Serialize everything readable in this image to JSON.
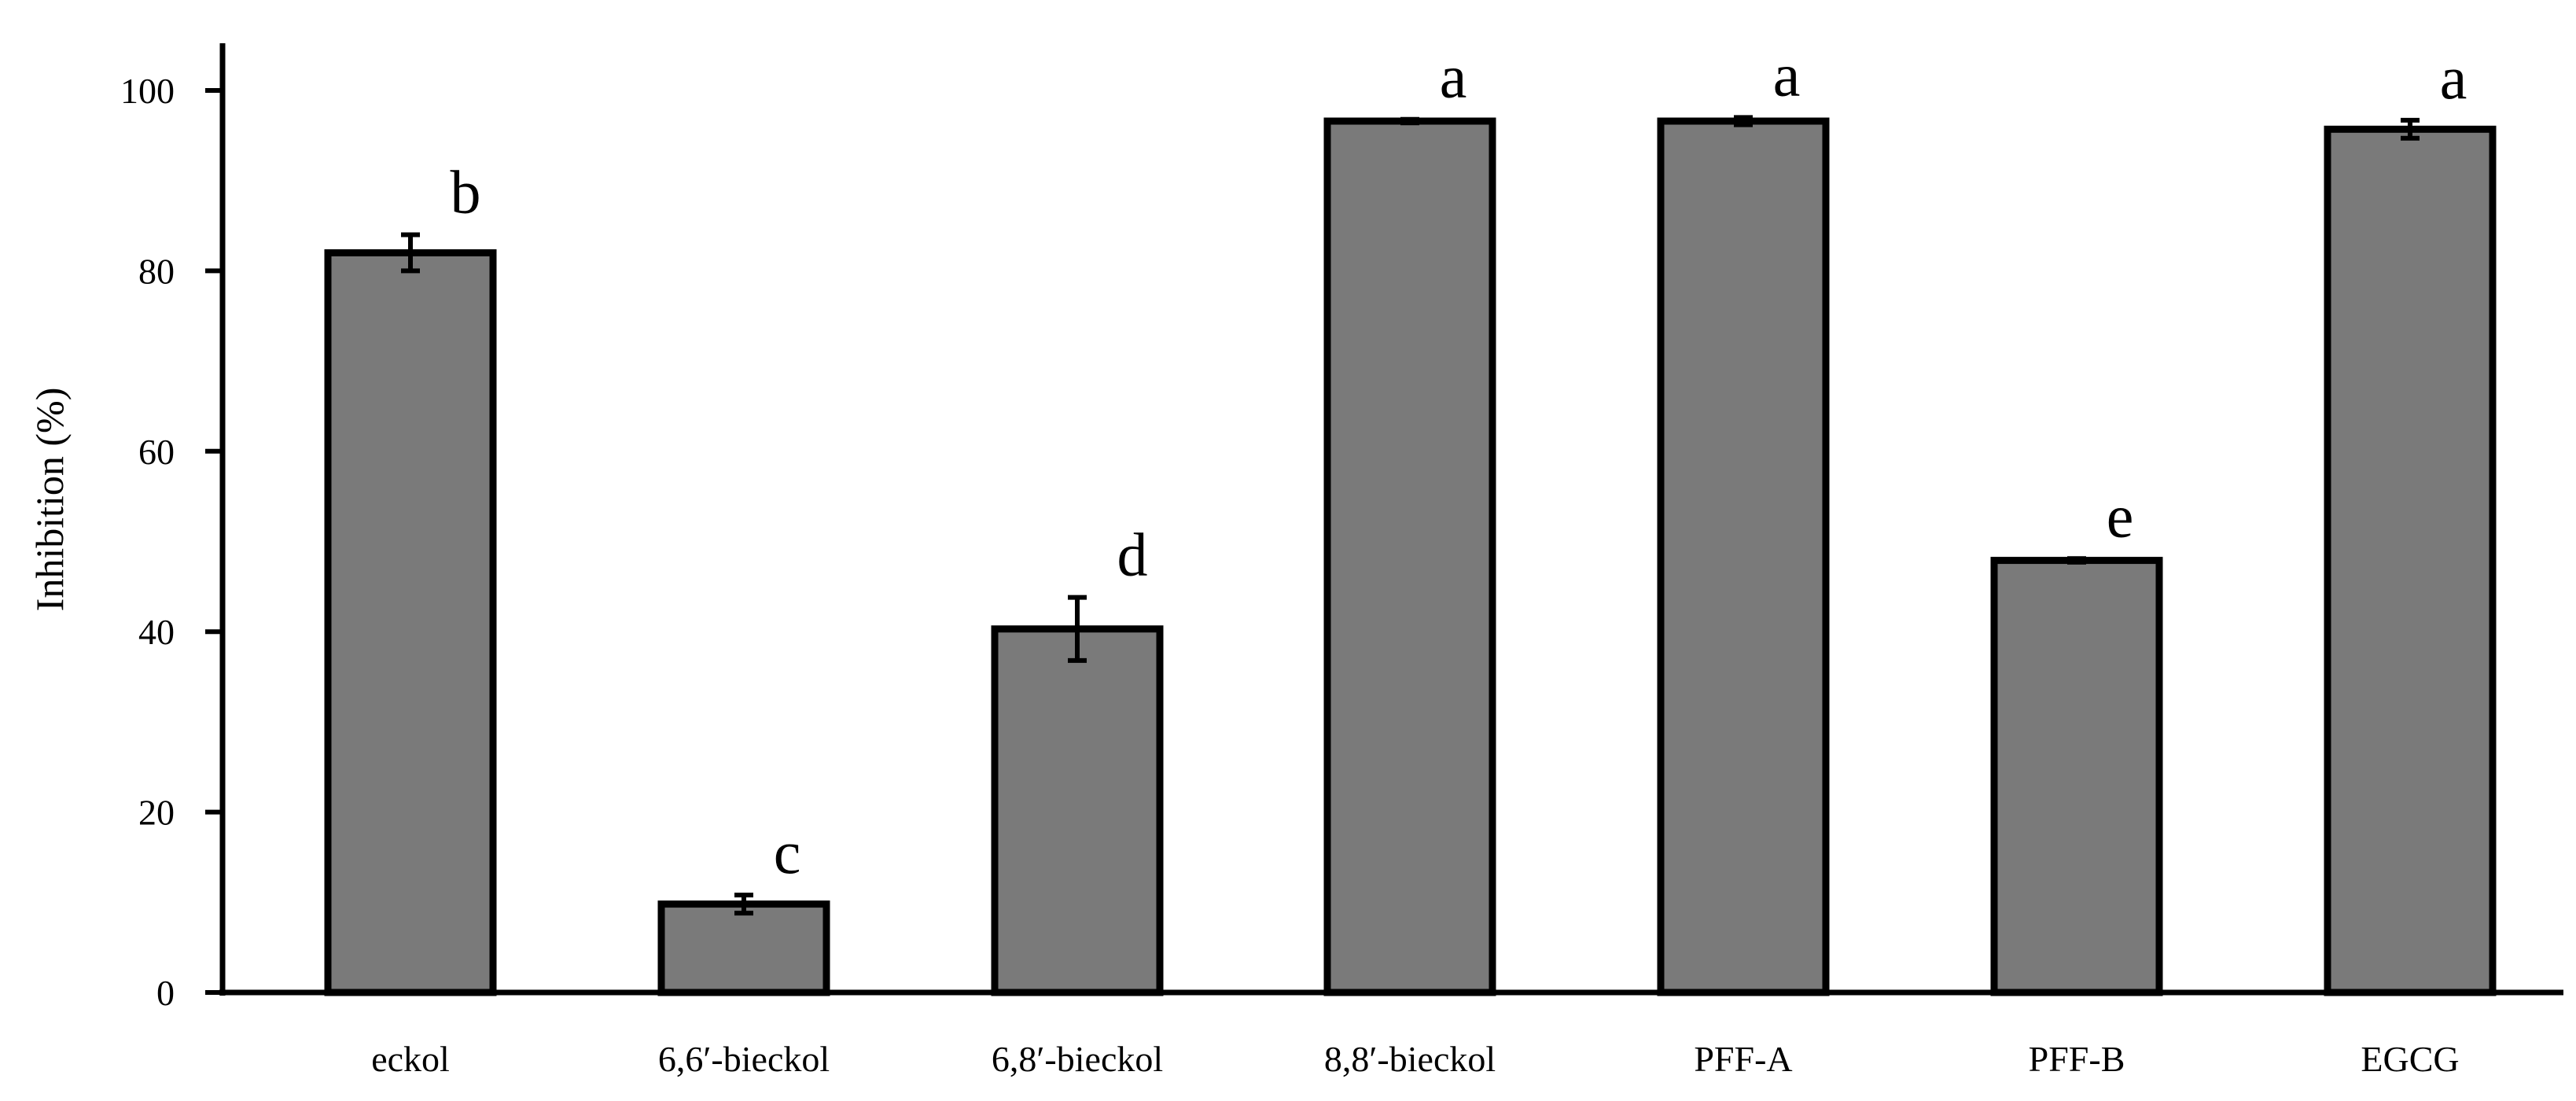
{
  "chart_data": {
    "type": "bar",
    "title": "",
    "xlabel": "",
    "ylabel": "Inhibition (%)",
    "ylim": [
      0,
      100
    ],
    "yticks": [
      "0",
      "20",
      "40",
      "60",
      "80",
      "100"
    ],
    "grid": false,
    "legend": "none",
    "categories": [
      "eckol",
      "6,6′-bieckol",
      "6,8′-bieckol",
      "8,8′-bieckol",
      "PFF-A",
      "PFF-B",
      "EGCG"
    ],
    "series": [
      {
        "values": [
          82.0,
          9.8,
          40.3,
          96.6,
          96.6,
          47.9,
          95.7
        ],
        "errors": [
          2.0,
          1.0,
          3.5,
          0.2,
          0.4,
          0.2,
          1.0
        ],
        "significance": [
          "b",
          "c",
          "d",
          "a",
          "a",
          "e",
          "a"
        ],
        "color": "#7a7a7a",
        "edge_color": "#000000"
      }
    ]
  }
}
